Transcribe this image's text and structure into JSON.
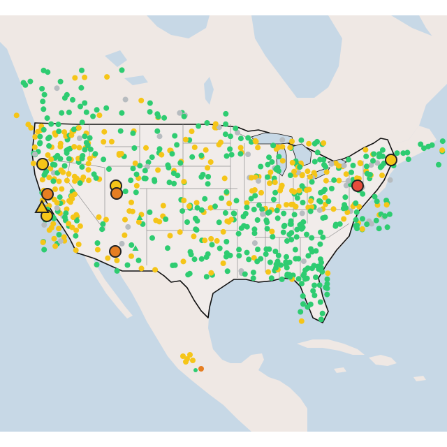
{
  "map": {
    "colors": {
      "frame": "#ffffff",
      "ocean": "#c7d8e6",
      "land": "#efe8e4",
      "usa": "#f1ecea",
      "border": "#111111",
      "state_border": "#8f8f8f",
      "good": "#2ecc71",
      "moderate": "#f5c518",
      "usg": "#e67e22",
      "unhealthy": "#e74c3c",
      "nodata": "#b7bcc0",
      "outline": "#222222"
    },
    "legend": []
  }
}
